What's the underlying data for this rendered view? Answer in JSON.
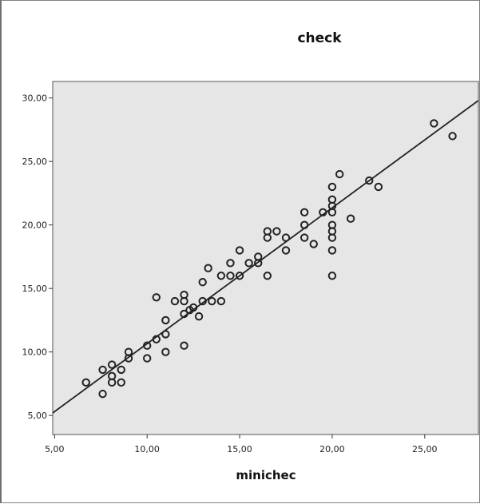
{
  "chart_data": {
    "type": "scatter",
    "title": "check",
    "xlabel": "minichec",
    "ylabel": "",
    "xlim": [
      4.9,
      27.9
    ],
    "ylim": [
      3.5,
      31.3
    ],
    "xticks": [
      5,
      10,
      15,
      20,
      25
    ],
    "yticks": [
      5,
      10,
      15,
      20,
      25,
      30
    ],
    "xtick_labels": [
      "5,00",
      "10,00",
      "15,00",
      "20,00",
      "25,00"
    ],
    "ytick_labels": [
      "5,00",
      "10,00",
      "15,00",
      "20,00",
      "25,00",
      "30,00"
    ],
    "grid": false,
    "legend": "none",
    "background": "#e6e6e6",
    "marker_color": "#222222",
    "fit_line": {
      "type": "linear",
      "x": [
        4.9,
        27.9
      ],
      "y": [
        5.2,
        29.8
      ]
    },
    "points": [
      {
        "x": 6.7,
        "y": 7.6
      },
      {
        "x": 7.6,
        "y": 6.7
      },
      {
        "x": 7.6,
        "y": 8.6
      },
      {
        "x": 8.1,
        "y": 8.1
      },
      {
        "x": 8.1,
        "y": 7.6
      },
      {
        "x": 8.1,
        "y": 9.0
      },
      {
        "x": 8.6,
        "y": 8.6
      },
      {
        "x": 8.6,
        "y": 7.6
      },
      {
        "x": 9.0,
        "y": 9.5
      },
      {
        "x": 9.0,
        "y": 10.0
      },
      {
        "x": 10.0,
        "y": 9.5
      },
      {
        "x": 10.0,
        "y": 10.5
      },
      {
        "x": 10.5,
        "y": 11.0
      },
      {
        "x": 10.5,
        "y": 14.3
      },
      {
        "x": 11.0,
        "y": 10.0
      },
      {
        "x": 11.0,
        "y": 11.4
      },
      {
        "x": 11.0,
        "y": 12.5
      },
      {
        "x": 11.5,
        "y": 14.0
      },
      {
        "x": 12.0,
        "y": 10.5
      },
      {
        "x": 12.0,
        "y": 13.0
      },
      {
        "x": 12.0,
        "y": 14.0
      },
      {
        "x": 12.0,
        "y": 14.5
      },
      {
        "x": 12.3,
        "y": 13.3
      },
      {
        "x": 12.5,
        "y": 13.5
      },
      {
        "x": 12.8,
        "y": 12.8
      },
      {
        "x": 13.0,
        "y": 14.0
      },
      {
        "x": 13.0,
        "y": 15.5
      },
      {
        "x": 13.3,
        "y": 16.6
      },
      {
        "x": 13.5,
        "y": 14.0
      },
      {
        "x": 14.0,
        "y": 14.0
      },
      {
        "x": 14.0,
        "y": 16.0
      },
      {
        "x": 14.5,
        "y": 16.0
      },
      {
        "x": 14.5,
        "y": 17.0
      },
      {
        "x": 15.0,
        "y": 16.0
      },
      {
        "x": 15.0,
        "y": 18.0
      },
      {
        "x": 15.5,
        "y": 17.0
      },
      {
        "x": 16.0,
        "y": 17.0
      },
      {
        "x": 16.0,
        "y": 17.5
      },
      {
        "x": 16.5,
        "y": 16.0
      },
      {
        "x": 16.5,
        "y": 19.0
      },
      {
        "x": 16.5,
        "y": 19.5
      },
      {
        "x": 17.0,
        "y": 19.5
      },
      {
        "x": 17.5,
        "y": 18.0
      },
      {
        "x": 17.5,
        "y": 19.0
      },
      {
        "x": 18.5,
        "y": 19.0
      },
      {
        "x": 18.5,
        "y": 20.0
      },
      {
        "x": 18.5,
        "y": 21.0
      },
      {
        "x": 19.0,
        "y": 18.5
      },
      {
        "x": 19.5,
        "y": 21.0
      },
      {
        "x": 20.0,
        "y": 16.0
      },
      {
        "x": 20.0,
        "y": 18.0
      },
      {
        "x": 20.0,
        "y": 19.0
      },
      {
        "x": 20.0,
        "y": 19.5
      },
      {
        "x": 20.0,
        "y": 20.0
      },
      {
        "x": 20.0,
        "y": 21.0
      },
      {
        "x": 20.0,
        "y": 21.5
      },
      {
        "x": 20.0,
        "y": 22.0
      },
      {
        "x": 20.0,
        "y": 23.0
      },
      {
        "x": 20.4,
        "y": 24.0
      },
      {
        "x": 21.0,
        "y": 20.5
      },
      {
        "x": 22.0,
        "y": 23.5
      },
      {
        "x": 22.5,
        "y": 23.0
      },
      {
        "x": 25.5,
        "y": 28.0
      },
      {
        "x": 26.5,
        "y": 27.0
      }
    ]
  }
}
